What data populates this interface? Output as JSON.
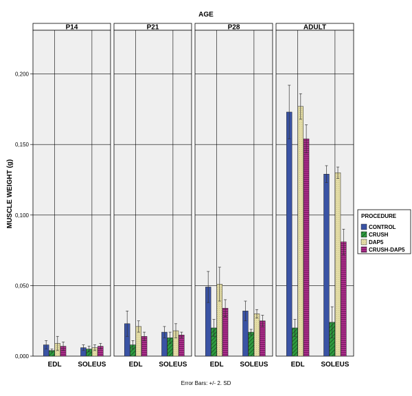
{
  "chart_data": {
    "type": "bar",
    "title": "AGE",
    "ylabel": "MUSCLE WEIGHT (g)",
    "xlabel": "",
    "footer": "Error Bars: +/- 2. SD",
    "ylim": [
      0,
      0.23
    ],
    "yticks": [
      "0,000",
      "0,050",
      "0,100",
      "0,150",
      "0,200"
    ],
    "ytick_values": [
      0,
      0.05,
      0.1,
      0.15,
      0.2
    ],
    "grid": true,
    "legend_position": "right",
    "legend_title": "PROCEDURE",
    "panels": [
      "P14",
      "P21",
      "P28",
      "ADULT"
    ],
    "categories": [
      "EDL",
      "SOLEUS"
    ],
    "series": [
      {
        "name": "CONTROL",
        "color": "#3a53a4",
        "values": [
          [
            0.008,
            0.006
          ],
          [
            0.023,
            0.017
          ],
          [
            0.049,
            0.032
          ],
          [
            0.173,
            0.129
          ]
        ],
        "err": [
          [
            0.003,
            0.002
          ],
          [
            0.009,
            0.004
          ],
          [
            0.011,
            0.007
          ],
          [
            0.019,
            0.006
          ]
        ]
      },
      {
        "name": "CRUSH",
        "color": "#2e9a3f",
        "values": [
          [
            0.004,
            0.005
          ],
          [
            0.008,
            0.013
          ],
          [
            0.02,
            0.017
          ],
          [
            0.02,
            0.024
          ]
        ],
        "err": [
          [
            0.001,
            0.002
          ],
          [
            0.003,
            0.004
          ],
          [
            0.006,
            0.002
          ],
          [
            0.006,
            0.011
          ]
        ]
      },
      {
        "name": "DAP5",
        "color": "#e4dda6",
        "values": [
          [
            0.009,
            0.006
          ],
          [
            0.021,
            0.018
          ],
          [
            0.051,
            0.03
          ],
          [
            0.177,
            0.13
          ]
        ],
        "err": [
          [
            0.005,
            0.002
          ],
          [
            0.004,
            0.005
          ],
          [
            0.012,
            0.003
          ],
          [
            0.009,
            0.004
          ]
        ]
      },
      {
        "name": "CRUSH-DAP5",
        "color": "#8a1f70",
        "values": [
          [
            0.007,
            0.007
          ],
          [
            0.014,
            0.015
          ],
          [
            0.034,
            0.025
          ],
          [
            0.154,
            0.081
          ]
        ],
        "err": [
          [
            0.003,
            0.002
          ],
          [
            0.003,
            0.002
          ],
          [
            0.006,
            0.004
          ],
          [
            0.01,
            0.009
          ]
        ]
      }
    ]
  }
}
